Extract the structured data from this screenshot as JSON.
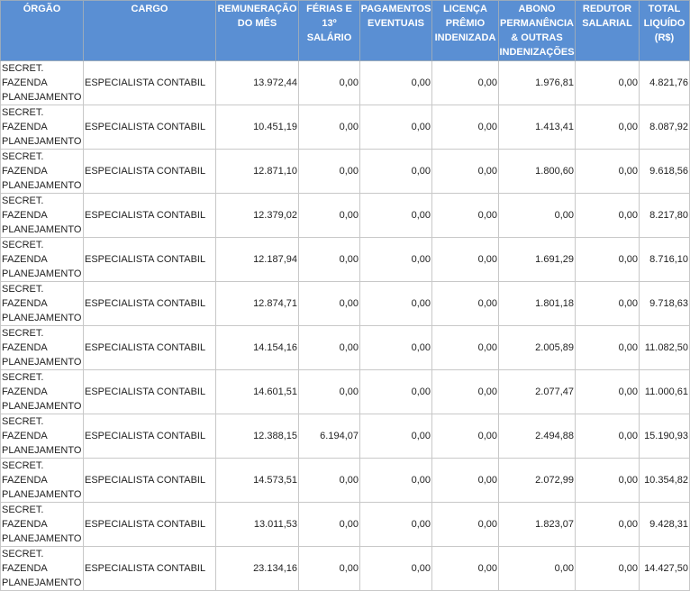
{
  "table": {
    "headers": [
      "ÓRGÃO",
      "CARGO",
      "REMUNERAÇÃO DO MÊS",
      "FÉRIAS E 13º SALÁRIO",
      "PAGAMENTOS EVENTUAIS",
      "LICENÇA PRÊMIO INDENIZADA",
      "ABONO PERMANÊNCIA & OUTRAS INDENIZAÇÕES",
      "REDUTOR SALARIAL",
      "TOTAL LIQUÍDO (R$)"
    ],
    "rows": [
      [
        "SECRET. FAZENDA PLANEJAMENTO",
        "ESPECIALISTA CONTABIL",
        "13.972,44",
        "0,00",
        "0,00",
        "0,00",
        "1.976,81",
        "0,00",
        "4.821,76"
      ],
      [
        "SECRET. FAZENDA PLANEJAMENTO",
        "ESPECIALISTA CONTABIL",
        "10.451,19",
        "0,00",
        "0,00",
        "0,00",
        "1.413,41",
        "0,00",
        "8.087,92"
      ],
      [
        "SECRET. FAZENDA PLANEJAMENTO",
        "ESPECIALISTA CONTABIL",
        "12.871,10",
        "0,00",
        "0,00",
        "0,00",
        "1.800,60",
        "0,00",
        "9.618,56"
      ],
      [
        "SECRET. FAZENDA PLANEJAMENTO",
        "ESPECIALISTA CONTABIL",
        "12.379,02",
        "0,00",
        "0,00",
        "0,00",
        "0,00",
        "0,00",
        "8.217,80"
      ],
      [
        "SECRET. FAZENDA PLANEJAMENTO",
        "ESPECIALISTA CONTABIL",
        "12.187,94",
        "0,00",
        "0,00",
        "0,00",
        "1.691,29",
        "0,00",
        "8.716,10"
      ],
      [
        "SECRET. FAZENDA PLANEJAMENTO",
        "ESPECIALISTA CONTABIL",
        "12.874,71",
        "0,00",
        "0,00",
        "0,00",
        "1.801,18",
        "0,00",
        "9.718,63"
      ],
      [
        "SECRET. FAZENDA PLANEJAMENTO",
        "ESPECIALISTA CONTABIL",
        "14.154,16",
        "0,00",
        "0,00",
        "0,00",
        "2.005,89",
        "0,00",
        "11.082,50"
      ],
      [
        "SECRET. FAZENDA PLANEJAMENTO",
        "ESPECIALISTA CONTABIL",
        "14.601,51",
        "0,00",
        "0,00",
        "0,00",
        "2.077,47",
        "0,00",
        "11.000,61"
      ],
      [
        "SECRET. FAZENDA PLANEJAMENTO",
        "ESPECIALISTA CONTABIL",
        "12.388,15",
        "6.194,07",
        "0,00",
        "0,00",
        "2.494,88",
        "0,00",
        "15.190,93"
      ],
      [
        "SECRET. FAZENDA PLANEJAMENTO",
        "ESPECIALISTA CONTABIL",
        "14.573,51",
        "0,00",
        "0,00",
        "0,00",
        "2.072,99",
        "0,00",
        "10.354,82"
      ],
      [
        "SECRET. FAZENDA PLANEJAMENTO",
        "ESPECIALISTA CONTABIL",
        "13.011,53",
        "0,00",
        "0,00",
        "0,00",
        "1.823,07",
        "0,00",
        "9.428,31"
      ],
      [
        "SECRET. FAZENDA PLANEJAMENTO",
        "ESPECIALISTA CONTABIL",
        "23.134,16",
        "0,00",
        "0,00",
        "0,00",
        "0,00",
        "0,00",
        "14.427,50"
      ]
    ]
  }
}
